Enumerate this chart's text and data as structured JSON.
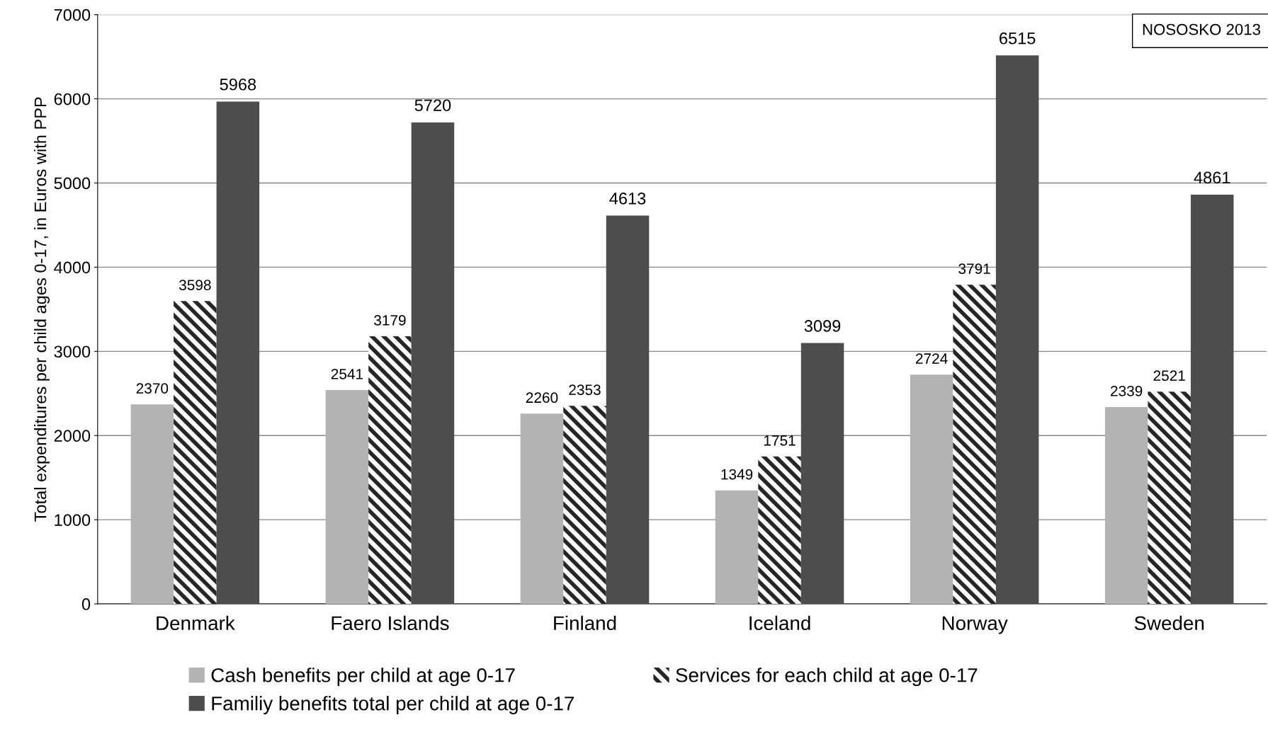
{
  "chart_data": {
    "type": "bar",
    "ylabel": "Total expenditures per child ages 0-17, in Euros with PPP",
    "categories": [
      "Denmark",
      "Faero Islands",
      "Finland",
      "Iceland",
      "Norway",
      "Sweden"
    ],
    "series": [
      {
        "name": "Cash benefits per child at age 0-17",
        "color": "#b3b3b3",
        "values": [
          2370,
          2541,
          2260,
          1349,
          2724,
          2339
        ]
      },
      {
        "name": "Services for each child at age 0-17",
        "color": "#262626",
        "values": [
          3598,
          3179,
          2353,
          1751,
          3791,
          2521
        ]
      },
      {
        "name": "Familiy benefits total per child at age 0-17",
        "color": "#4d4d4d",
        "values": [
          5968,
          5720,
          4613,
          3099,
          6515,
          4861
        ]
      }
    ],
    "ylim": [
      0,
      7000
    ],
    "yticks": [
      0,
      1000,
      2000,
      3000,
      4000,
      5000,
      6000,
      7000
    ],
    "grid": "y",
    "legend": "bottom",
    "data_labels": true,
    "annotations": [
      "NOSOSKO 2013"
    ]
  }
}
